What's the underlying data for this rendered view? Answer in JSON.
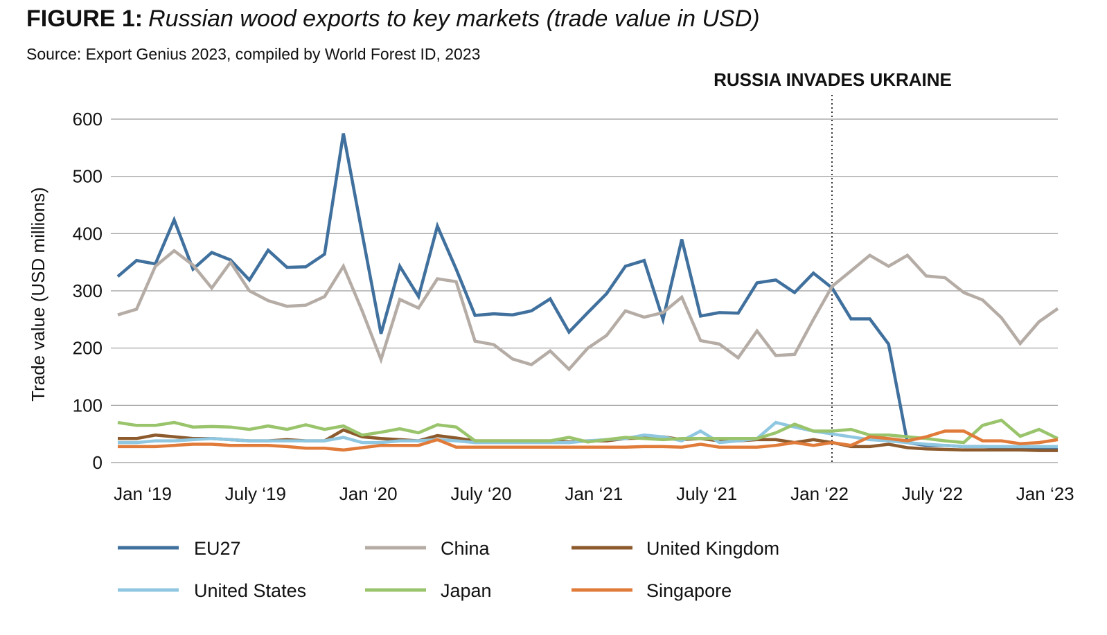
{
  "chart_data": {
    "type": "line",
    "title_prefix": "FIGURE 1:",
    "title": "Russian wood exports to key markets (trade value in USD)",
    "subtitle": "Source: Export Genius 2023, compiled by World Forest ID, 2023",
    "annotation": "RUSSIA INVADES UKRAINE",
    "y_label": "Trade value (USD millions)",
    "categories": [
      "Jan ‘19",
      null,
      null,
      null,
      null,
      null,
      "July ‘19",
      null,
      null,
      null,
      null,
      null,
      "Jan ‘20",
      null,
      null,
      null,
      null,
      null,
      "July ‘20",
      null,
      null,
      null,
      null,
      null,
      "Jan ‘21",
      null,
      null,
      null,
      null,
      null,
      "July ‘21",
      null,
      null,
      null,
      null,
      null,
      "Jan ‘22",
      null,
      null,
      null,
      null,
      null,
      "July ‘22",
      null,
      null,
      null,
      null,
      null,
      "Jan ‘23",
      null,
      null
    ],
    "ylim": [
      0,
      600
    ],
    "yticks": [
      0,
      100,
      200,
      300,
      400,
      500,
      600
    ],
    "grid": true,
    "series": [
      {
        "name": "EU27",
        "color": "#40709d",
        "values": [
          325,
          353,
          347,
          424,
          338,
          367,
          354,
          319,
          371,
          341,
          342,
          364,
          575,
          400,
          225,
          343,
          290,
          413,
          338,
          257,
          260,
          258,
          265,
          286,
          228,
          262,
          295,
          343,
          353,
          250,
          390,
          256,
          262,
          261,
          314,
          319,
          297,
          331,
          305,
          251,
          251,
          207,
          35,
          30,
          30,
          28,
          28,
          27,
          26,
          25,
          25
        ]
      },
      {
        "name": "China",
        "color": "#b5aca6",
        "values": [
          258,
          268,
          343,
          370,
          345,
          305,
          350,
          300,
          283,
          273,
          275,
          290,
          343,
          265,
          180,
          285,
          270,
          321,
          316,
          212,
          206,
          181,
          171,
          195,
          163,
          200,
          222,
          265,
          254,
          262,
          289,
          213,
          207,
          183,
          230,
          187,
          189,
          250,
          308,
          335,
          362,
          343,
          362,
          326,
          323,
          297,
          284,
          253,
          208,
          246,
          269
        ]
      },
      {
        "name": "United Kingdom",
        "color": "#8c5a2c",
        "values": [
          42,
          42,
          48,
          45,
          42,
          42,
          40,
          38,
          38,
          40,
          38,
          38,
          57,
          45,
          42,
          40,
          38,
          47,
          43,
          38,
          38,
          38,
          38,
          38,
          36,
          38,
          38,
          42,
          43,
          45,
          40,
          42,
          38,
          38,
          40,
          40,
          35,
          40,
          35,
          28,
          28,
          32,
          26,
          24,
          23,
          22,
          22,
          22,
          22,
          21,
          21
        ]
      },
      {
        "name": "United States",
        "color": "#8fc7e1",
        "values": [
          35,
          35,
          38,
          38,
          40,
          42,
          40,
          38,
          38,
          38,
          38,
          38,
          44,
          35,
          35,
          38,
          38,
          40,
          38,
          35,
          35,
          35,
          35,
          35,
          35,
          38,
          40,
          42,
          48,
          45,
          38,
          55,
          35,
          38,
          42,
          70,
          62,
          55,
          50,
          45,
          40,
          38,
          35,
          32,
          30,
          28,
          28,
          28,
          28,
          28,
          28
        ]
      },
      {
        "name": "Japan",
        "color": "#99c46b",
        "values": [
          70,
          65,
          65,
          70,
          62,
          63,
          62,
          58,
          64,
          58,
          66,
          58,
          64,
          48,
          53,
          59,
          52,
          66,
          62,
          38,
          38,
          38,
          38,
          38,
          44,
          36,
          40,
          44,
          42,
          40,
          42,
          42,
          42,
          42,
          42,
          52,
          67,
          55,
          55,
          58,
          48,
          48,
          45,
          42,
          38,
          35,
          65,
          74,
          46,
          58,
          42
        ]
      },
      {
        "name": "Singapore",
        "color": "#e07b3a",
        "values": [
          28,
          28,
          28,
          30,
          32,
          32,
          30,
          30,
          30,
          28,
          25,
          25,
          22,
          26,
          30,
          30,
          30,
          40,
          27,
          27,
          27,
          27,
          27,
          27,
          27,
          27,
          27,
          27,
          28,
          28,
          27,
          32,
          27,
          27,
          27,
          30,
          35,
          30,
          35,
          30,
          45,
          42,
          38,
          45,
          55,
          55,
          38,
          38,
          33,
          35,
          40
        ]
      }
    ]
  }
}
